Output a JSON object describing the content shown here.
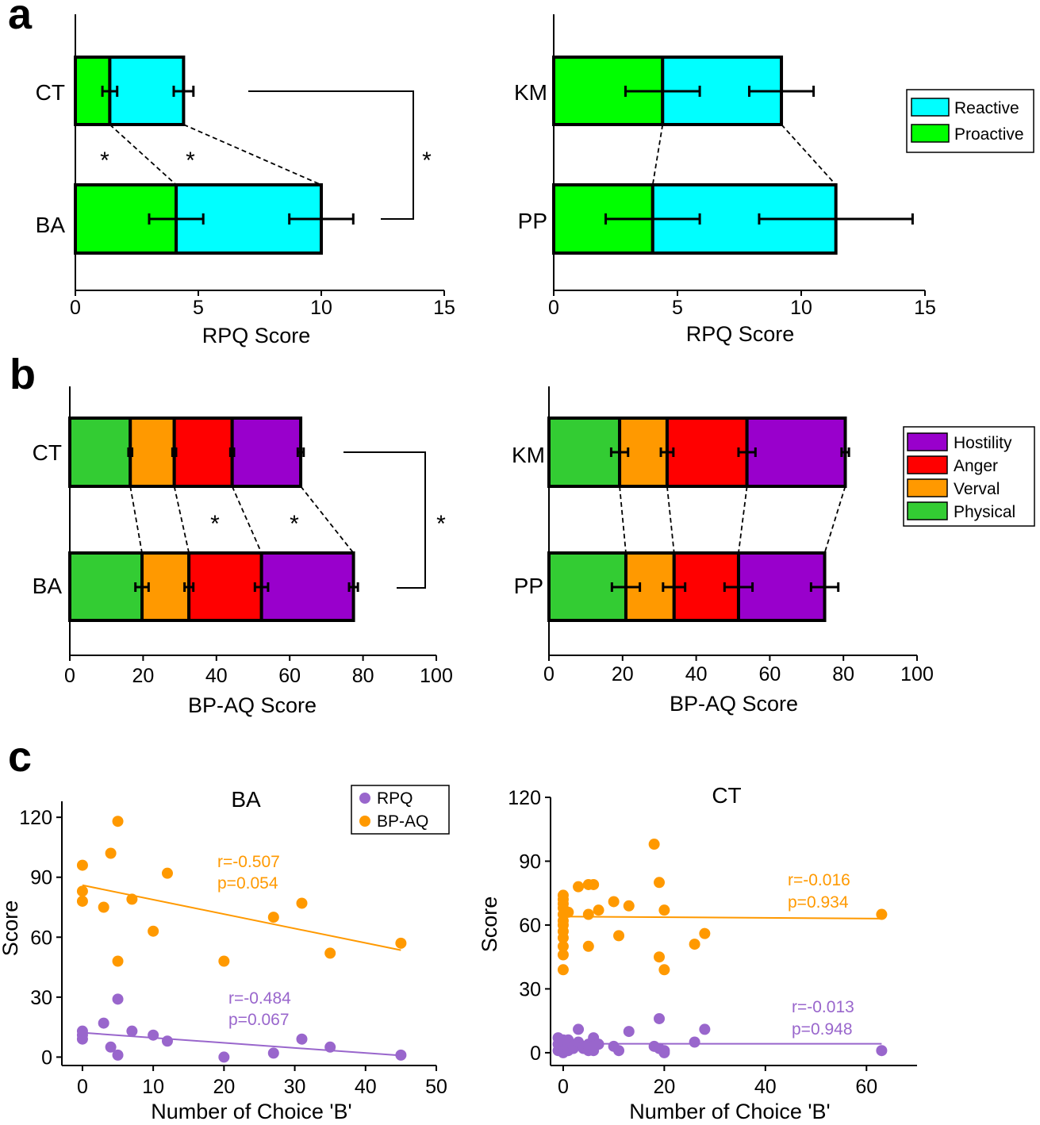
{
  "panels": {
    "a": "a",
    "b": "b",
    "c": "c"
  },
  "colors": {
    "reactive": "#00ffff",
    "proactive": "#00ff00",
    "hostility": "#9900cc",
    "anger": "#ff0000",
    "verval": "#ff9900",
    "physical": "#33cc33",
    "rpq_points": "#9966cc",
    "bpaq_points": "#ff9900"
  },
  "chart_data": [
    {
      "id": "a-left",
      "type": "bar",
      "stacked": true,
      "orientation": "horizontal",
      "categories": [
        "CT",
        "BA"
      ],
      "series": [
        {
          "name": "Proactive",
          "values": [
            1.4,
            4.1
          ],
          "errors": [
            0.3,
            1.1
          ]
        },
        {
          "name": "Reactive",
          "values": [
            3.0,
            5.9
          ],
          "errors": [
            0.4,
            1.3
          ]
        }
      ],
      "xlabel": "RPQ Score",
      "xlim": [
        0,
        15
      ],
      "xticks": [
        0,
        5,
        10,
        15
      ],
      "significance": [
        {
          "label": "*"
        },
        {
          "label": "*"
        },
        {
          "label": "*"
        }
      ]
    },
    {
      "id": "a-right",
      "type": "bar",
      "stacked": true,
      "orientation": "horizontal",
      "categories": [
        "KM",
        "PP"
      ],
      "series": [
        {
          "name": "Proactive",
          "values": [
            4.4,
            4.0
          ],
          "errors": [
            1.5,
            1.9
          ]
        },
        {
          "name": "Reactive",
          "values": [
            4.8,
            7.4
          ],
          "errors": [
            1.3,
            3.1
          ]
        }
      ],
      "xlabel": "RPQ Score",
      "xlim": [
        0,
        15
      ],
      "xticks": [
        0,
        5,
        10,
        15
      ],
      "legend": [
        "Reactive",
        "Proactive"
      ]
    },
    {
      "id": "b-left",
      "type": "bar",
      "stacked": true,
      "orientation": "horizontal",
      "categories": [
        "CT",
        "BA"
      ],
      "series": [
        {
          "name": "Physical",
          "values": [
            16.5,
            19.7
          ],
          "errors": [
            0.5,
            1.8
          ]
        },
        {
          "name": "Verval",
          "values": [
            12,
            12.8
          ],
          "errors": [
            0.5,
            1.2
          ]
        },
        {
          "name": "Anger",
          "values": [
            15.8,
            19.8
          ],
          "errors": [
            0.5,
            1.8
          ]
        },
        {
          "name": "Hostility",
          "values": [
            18.7,
            25.1
          ],
          "errors": [
            0.8,
            1.2
          ]
        }
      ],
      "xlabel": "BP-AQ Score",
      "xlim": [
        0,
        100
      ],
      "xticks": [
        0,
        20,
        40,
        60,
        80,
        100
      ],
      "significance": [
        {
          "label": "*"
        },
        {
          "label": "*"
        },
        {
          "label": "*"
        }
      ]
    },
    {
      "id": "b-right",
      "type": "bar",
      "stacked": true,
      "orientation": "horizontal",
      "categories": [
        "KM",
        "PP"
      ],
      "series": [
        {
          "name": "Physical",
          "values": [
            19.2,
            20.9
          ],
          "errors": [
            2.3,
            3.8
          ]
        },
        {
          "name": "Verval",
          "values": [
            12.9,
            13.1
          ],
          "errors": [
            1.7,
            3.0
          ]
        },
        {
          "name": "Anger",
          "values": [
            21.7,
            17.5
          ],
          "errors": [
            2.3,
            3.8
          ]
        },
        {
          "name": "Hostility",
          "values": [
            26.7,
            23.4
          ],
          "errors": [
            1.0,
            3.7
          ]
        }
      ],
      "xlabel": "BP-AQ Score",
      "xlim": [
        0,
        100
      ],
      "xticks": [
        0,
        20,
        40,
        60,
        80,
        100
      ],
      "legend": [
        "Hostility",
        "Anger",
        "Verval",
        "Physical"
      ]
    },
    {
      "id": "c-left",
      "type": "scatter",
      "title": "BA",
      "xlabel": "Number of Choice 'B'",
      "ylabel": "Score",
      "xlim": [
        -1,
        50
      ],
      "ylim": [
        -5,
        128
      ],
      "xticks": [
        0,
        10,
        20,
        30,
        40,
        50
      ],
      "yticks": [
        0,
        30,
        60,
        90,
        120
      ],
      "legend": [
        "RPQ",
        "BP-AQ"
      ],
      "series": [
        {
          "name": "RPQ",
          "x": [
            0,
            0,
            0,
            3,
            4,
            5,
            5,
            7,
            10,
            12,
            20,
            27,
            31,
            35,
            45
          ],
          "y": [
            9,
            11,
            13,
            17,
            5,
            29,
            1,
            13,
            11,
            8,
            0,
            2,
            9,
            5,
            1
          ],
          "fit": {
            "x": [
              0,
              45
            ],
            "y": [
              12.2,
              0.8
            ]
          },
          "annotation": [
            "r=-0.484",
            "p=0.067"
          ]
        },
        {
          "name": "BP-AQ",
          "x": [
            0,
            0,
            0,
            3,
            4,
            5,
            5,
            7,
            10,
            12,
            20,
            27,
            31,
            35,
            45
          ],
          "y": [
            96,
            83,
            78,
            75,
            102,
            118,
            48,
            79,
            63,
            92,
            48,
            70,
            77,
            52,
            57
          ],
          "fit": {
            "x": [
              0,
              45
            ],
            "y": [
              86,
              53.5
            ]
          },
          "annotation": [
            "r=-0.507",
            "p=0.054"
          ]
        }
      ]
    },
    {
      "id": "c-right",
      "type": "scatter",
      "title": "CT",
      "xlabel": "Number of Choice 'B'",
      "ylabel": "Score",
      "xlim": [
        -2.5,
        70
      ],
      "ylim": [
        -6,
        120
      ],
      "xticks": [
        0,
        20,
        40,
        60
      ],
      "yticks": [
        0,
        30,
        60,
        90,
        120
      ],
      "series": [
        {
          "name": "RPQ",
          "x": [
            -1,
            -1,
            -1,
            0,
            0,
            0,
            0,
            0,
            1,
            1,
            1,
            2,
            2,
            3,
            3,
            4,
            4,
            5,
            5,
            6,
            6,
            6,
            7,
            10,
            11,
            13,
            18,
            19,
            19,
            20,
            20,
            26,
            28,
            63
          ],
          "y": [
            1,
            4,
            7,
            0,
            2,
            3,
            5,
            6,
            1,
            4,
            6,
            2,
            3,
            11,
            5,
            2,
            3,
            1,
            4,
            7,
            1,
            3,
            4,
            3,
            1,
            10,
            3,
            16,
            2,
            0,
            1,
            5,
            11,
            1
          ],
          "fit": {
            "x": [
              0,
              63
            ],
            "y": [
              4.2,
              4.2
            ]
          },
          "annotation": [
            "r=-0.013",
            "p=0.948"
          ]
        },
        {
          "name": "BP-AQ",
          "x": [
            0,
            0,
            0,
            0,
            0,
            0,
            0,
            0,
            0,
            0,
            0,
            0,
            1,
            3,
            5,
            5,
            5,
            6,
            7,
            10,
            11,
            13,
            18,
            19,
            19,
            20,
            20,
            26,
            28,
            63
          ],
          "y": [
            39,
            46,
            50,
            54,
            57,
            60,
            62,
            68,
            70,
            72,
            74,
            65,
            66,
            78,
            79,
            65,
            50,
            79,
            67,
            71,
            55,
            69,
            98,
            80,
            45,
            39,
            67,
            51,
            56,
            65
          ],
          "fit": {
            "x": [
              0,
              63
            ],
            "y": [
              64,
              63
            ]
          },
          "annotation": [
            "r=-0.016",
            "p=0.934"
          ]
        }
      ]
    }
  ]
}
